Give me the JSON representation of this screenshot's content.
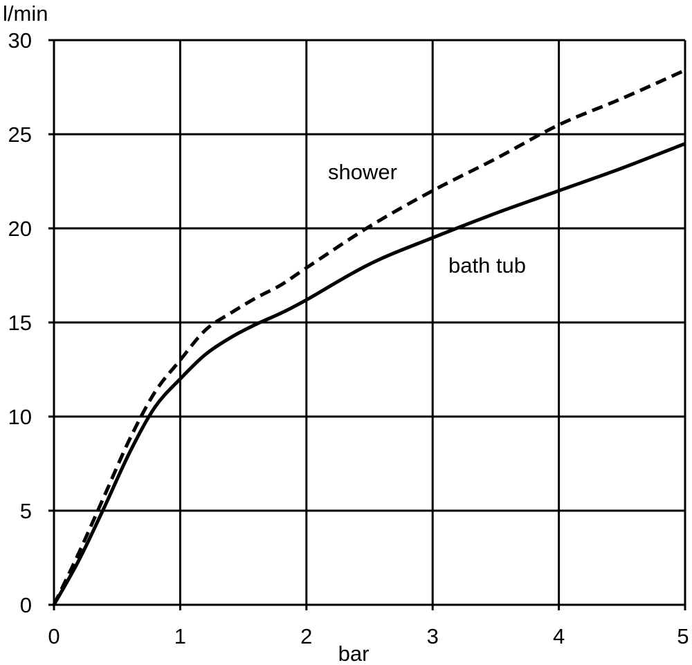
{
  "chart_data": {
    "type": "line",
    "xlabel": "bar",
    "ylabel": "l/min",
    "xlim": [
      0,
      5
    ],
    "ylim": [
      0,
      30
    ],
    "x_ticks": [
      0,
      1,
      2,
      3,
      4,
      5
    ],
    "y_ticks": [
      0,
      5,
      10,
      15,
      20,
      25,
      30
    ],
    "grid": true,
    "line_color": "#000000",
    "series": [
      {
        "name": "shower",
        "style": "dashed",
        "points": [
          [
            0,
            0
          ],
          [
            0.2,
            2.8
          ],
          [
            0.4,
            5.8
          ],
          [
            0.6,
            8.8
          ],
          [
            0.8,
            11.3
          ],
          [
            1.0,
            13.0
          ],
          [
            1.2,
            14.6
          ],
          [
            1.4,
            15.5
          ],
          [
            1.6,
            16.3
          ],
          [
            1.8,
            17.0
          ],
          [
            2.0,
            17.9
          ],
          [
            2.5,
            20.1
          ],
          [
            3.0,
            22.0
          ],
          [
            3.5,
            23.7
          ],
          [
            4.0,
            25.5
          ],
          [
            4.5,
            26.9
          ],
          [
            5.0,
            28.4
          ]
        ]
      },
      {
        "name": "bath tub",
        "style": "solid",
        "points": [
          [
            0,
            0
          ],
          [
            0.2,
            2.4
          ],
          [
            0.4,
            5.2
          ],
          [
            0.6,
            8.1
          ],
          [
            0.8,
            10.5
          ],
          [
            1.0,
            12.0
          ],
          [
            1.2,
            13.3
          ],
          [
            1.4,
            14.2
          ],
          [
            1.6,
            14.9
          ],
          [
            1.8,
            15.5
          ],
          [
            2.0,
            16.2
          ],
          [
            2.5,
            18.1
          ],
          [
            3.0,
            19.5
          ],
          [
            3.5,
            20.8
          ],
          [
            4.0,
            22.0
          ],
          [
            4.5,
            23.2
          ],
          [
            5.0,
            24.5
          ]
        ]
      }
    ]
  }
}
